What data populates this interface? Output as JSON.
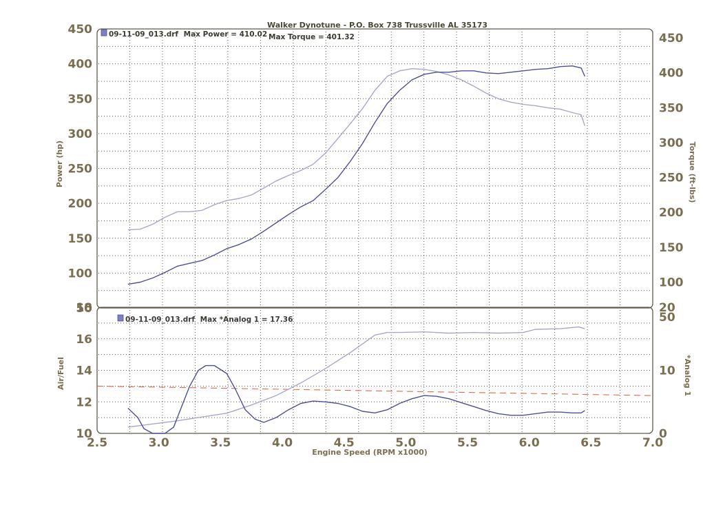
{
  "chart_data": [
    {
      "type": "line",
      "title": "Walker Dynotune - P.O. Box 738 Trussville AL 35173",
      "legend_file": "09-11-09_013.drf",
      "legend_power": "Max Power = 410.02",
      "legend_torque": "Max Torque = 401.32",
      "ylabel": "Power (hp)",
      "ylabel_right": "Torque (ft-lbs)",
      "ylim": [
        50,
        450
      ],
      "y_ticks": [
        "50",
        "100",
        "150",
        "200",
        "250",
        "300",
        "350",
        "400",
        "450"
      ],
      "grid": true,
      "colors": {
        "power": "#4d4f96",
        "torque": "#a9a7c8"
      },
      "series": [
        {
          "name": "Power (hp)",
          "x": [
            2.75,
            2.85,
            2.95,
            3.05,
            3.15,
            3.25,
            3.35,
            3.45,
            3.55,
            3.65,
            3.75,
            3.85,
            3.95,
            4.05,
            4.15,
            4.25,
            4.35,
            4.45,
            4.55,
            4.65,
            4.75,
            4.85,
            4.95,
            5.05,
            5.15,
            5.25,
            5.35,
            5.45,
            5.55,
            5.65,
            5.75,
            5.85,
            5.95,
            6.05,
            6.15,
            6.25,
            6.35,
            6.42,
            6.45
          ],
          "values": [
            84,
            87,
            93,
            101,
            110,
            114,
            118,
            126,
            135,
            141,
            149,
            160,
            172,
            184,
            195,
            204,
            220,
            237,
            260,
            286,
            316,
            343,
            362,
            377,
            385,
            388,
            388,
            390,
            390,
            387,
            386,
            388,
            390,
            392,
            393,
            396,
            397,
            394,
            382
          ]
        },
        {
          "name": "Torque (ft-lbs)",
          "x": [
            2.75,
            2.85,
            2.95,
            3.05,
            3.15,
            3.25,
            3.35,
            3.45,
            3.55,
            3.65,
            3.75,
            3.85,
            3.95,
            4.05,
            4.15,
            4.25,
            4.35,
            4.45,
            4.55,
            4.65,
            4.75,
            4.85,
            4.95,
            5.05,
            5.15,
            5.25,
            5.35,
            5.45,
            5.55,
            5.65,
            5.75,
            5.85,
            5.95,
            6.05,
            6.15,
            6.25,
            6.35,
            6.42,
            6.45
          ],
          "values": [
            162,
            163,
            170,
            180,
            188,
            188,
            190,
            198,
            204,
            207,
            212,
            222,
            232,
            240,
            247,
            256,
            272,
            293,
            314,
            336,
            362,
            382,
            390,
            393,
            392,
            389,
            384,
            377,
            368,
            358,
            350,
            345,
            342,
            340,
            337,
            335,
            330,
            327,
            311
          ]
        }
      ]
    },
    {
      "type": "line",
      "legend_file": "09-11-09_013.drf",
      "legend_text": "Max *Analog 1 = 17.36",
      "ylabel": "Air/Fuel",
      "ylabel_right": "*Analog 1",
      "xlabel": "Engine Speed (RPM x1000)",
      "xlim": [
        2.5,
        7.0
      ],
      "x_ticks": [
        "2.5",
        "3.0",
        "3.5",
        "4.0",
        "4.5",
        "5.0",
        "5.5",
        "6.0",
        "6.5",
        "7.0"
      ],
      "ylim": [
        10,
        18
      ],
      "y_ticks": [
        "10",
        "12",
        "14",
        "16",
        "18"
      ],
      "y2lim": [
        0,
        20
      ],
      "y2_ticks": [
        "0",
        "10",
        "20"
      ],
      "grid": true,
      "colors": {
        "afr": "#4d4f96",
        "analog": "#a9a7c8",
        "reference": "#e06848"
      },
      "series": [
        {
          "name": "Air/Fuel",
          "x": [
            2.75,
            2.83,
            2.88,
            2.95,
            3.05,
            3.12,
            3.18,
            3.25,
            3.32,
            3.38,
            3.45,
            3.55,
            3.62,
            3.7,
            3.78,
            3.85,
            3.95,
            4.05,
            4.15,
            4.25,
            4.35,
            4.45,
            4.55,
            4.65,
            4.75,
            4.85,
            4.95,
            5.05,
            5.15,
            5.25,
            5.35,
            5.45,
            5.55,
            5.65,
            5.75,
            5.85,
            5.95,
            6.05,
            6.15,
            6.25,
            6.35,
            6.42,
            6.45
          ],
          "values": [
            11.6,
            11.0,
            10.3,
            10.0,
            10.0,
            10.4,
            11.6,
            13.0,
            14.0,
            14.3,
            14.3,
            13.8,
            12.8,
            11.5,
            10.9,
            10.7,
            11.0,
            11.5,
            11.9,
            12.05,
            12.0,
            11.9,
            11.7,
            11.4,
            11.3,
            11.5,
            11.9,
            12.2,
            12.4,
            12.35,
            12.2,
            11.95,
            11.7,
            11.45,
            11.25,
            11.15,
            11.15,
            11.25,
            11.35,
            11.35,
            11.3,
            11.3,
            11.45
          ]
        },
        {
          "name": "*Analog 1",
          "x": [
            2.75,
            2.95,
            3.15,
            3.35,
            3.55,
            3.75,
            3.95,
            4.15,
            4.35,
            4.55,
            4.75,
            4.85,
            4.95,
            5.15,
            5.35,
            5.55,
            5.75,
            5.95,
            6.05,
            6.25,
            6.4,
            6.45
          ],
          "values": [
            1.0,
            1.5,
            2.0,
            2.6,
            3.2,
            4.5,
            6.0,
            8.0,
            10.3,
            12.8,
            15.6,
            16.0,
            16.0,
            16.1,
            15.9,
            16.0,
            15.9,
            16.0,
            16.5,
            16.6,
            16.9,
            16.6
          ]
        },
        {
          "name": "Reference",
          "x": [
            2.5,
            7.0
          ],
          "values": [
            13.0,
            12.4
          ]
        }
      ]
    }
  ]
}
